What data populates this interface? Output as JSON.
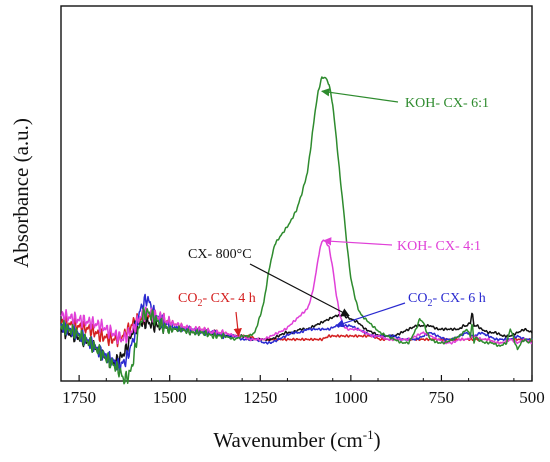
{
  "chart_data": {
    "type": "line",
    "title": "",
    "xlabel": "Wavenumber (cm",
    "xlabel_sup": "-1",
    "xlabel_suffix": ")",
    "ylabel": "Absorbance (a.u.)",
    "xlim": [
      1800,
      500
    ],
    "x_reversed": true,
    "x_ticks": [
      1750,
      1500,
      1250,
      1000,
      750,
      500
    ],
    "x_tick_labels": [
      "1750",
      "1500",
      "1250",
      "1000",
      "750",
      "500"
    ],
    "ylim": [
      0,
      100
    ],
    "y_ticks_shown": false,
    "grid": false,
    "colors": {
      "green": "#2e8b2e",
      "magenta": "#e040d8",
      "black": "#111111",
      "blue": "#2a2ad0",
      "red": "#d42020"
    },
    "annotations": [
      {
        "series": "KOH-CX-6:1",
        "label": "KOH- CX- 6:1",
        "color": "#2e8b2e",
        "pointer_x": 1080,
        "pointer_y": 82
      },
      {
        "series": "KOH-CX-4:1",
        "label": "KOH- CX- 4:1",
        "color": "#e040d8",
        "pointer_x": 1075,
        "pointer_y": 38
      },
      {
        "series": "CX-800",
        "label": "CX- 800°C",
        "color": "#111111",
        "pointer_x": 1005,
        "pointer_y": 16
      },
      {
        "series": "CO2-CX-4h",
        "label_pre": "CO",
        "label_sub": "2",
        "label_post": "- CX- 4 h",
        "color": "#d42020",
        "pointer_x": 1310,
        "pointer_y": 10
      },
      {
        "series": "CO2-CX-6h",
        "label_pre": "CO",
        "label_sub": "2",
        "label_post": "- CX- 6 h",
        "color": "#2a2ad0",
        "pointer_x": 1040,
        "pointer_y": 13
      }
    ],
    "series": [
      {
        "id": "KOH-CX-6:1",
        "name": "KOH- CX- 6:1",
        "color": "#2e8b2e",
        "x": [
          1800,
          1760,
          1720,
          1690,
          1660,
          1640,
          1625,
          1610,
          1600,
          1590,
          1575,
          1560,
          1540,
          1520,
          1500,
          1470,
          1440,
          1410,
          1380,
          1350,
          1320,
          1300,
          1280,
          1265,
          1250,
          1240,
          1225,
          1210,
          1190,
          1170,
          1150,
          1135,
          1120,
          1110,
          1100,
          1090,
          1080,
          1070,
          1060,
          1050,
          1040,
          1030,
          1020,
          1010,
          1000,
          990,
          980,
          970,
          960,
          950,
          940,
          920,
          900,
          880,
          860,
          840,
          820,
          810,
          800,
          790,
          780,
          760,
          740,
          720,
          700,
          680,
          670,
          665,
          660,
          655,
          650,
          630,
          610,
          590,
          570,
          560,
          555,
          550,
          540,
          530,
          520,
          510,
          500
        ],
        "y": [
          13,
          11,
          8,
          5,
          2,
          0,
          -3,
          -1,
          3,
          10,
          16,
          17,
          15,
          13,
          12,
          12,
          11,
          11,
          10,
          10,
          9,
          10,
          10,
          11,
          16,
          20,
          30,
          37,
          40,
          43,
          47,
          52,
          58,
          66,
          75,
          82,
          86,
          86,
          84,
          78,
          68,
          57,
          47,
          36,
          27,
          22,
          18,
          16,
          15,
          14,
          13,
          11,
          10,
          9,
          8,
          8,
          12,
          15,
          14,
          11,
          9,
          8,
          8,
          9,
          10,
          12,
          10,
          14,
          8,
          10,
          9,
          8,
          8,
          7,
          8,
          12,
          11,
          9,
          6,
          8,
          9,
          8,
          9
        ]
      },
      {
        "id": "KOH-CX-4:1",
        "name": "KOH- CX- 4:1",
        "color": "#e040d8",
        "x": [
          1800,
          1760,
          1720,
          1690,
          1660,
          1630,
          1600,
          1580,
          1560,
          1540,
          1520,
          1500,
          1470,
          1440,
          1410,
          1380,
          1350,
          1320,
          1300,
          1280,
          1260,
          1240,
          1220,
          1200,
          1180,
          1160,
          1140,
          1120,
          1110,
          1100,
          1090,
          1080,
          1070,
          1060,
          1050,
          1040,
          1030,
          1020,
          1010,
          1000,
          990,
          980,
          960,
          940,
          920,
          900,
          880,
          860,
          840,
          820,
          800,
          780,
          760,
          740,
          720,
          700,
          680,
          660,
          640,
          620,
          600,
          580,
          560,
          540,
          520,
          500
        ],
        "y": [
          16,
          15,
          14,
          13,
          11,
          9,
          12,
          16,
          17,
          16,
          15,
          14,
          13,
          12,
          12,
          11,
          11,
          10,
          10,
          9,
          9,
          9,
          10,
          11,
          12,
          14,
          16,
          18,
          21,
          26,
          33,
          38,
          38,
          36,
          30,
          22,
          16,
          13,
          12,
          12,
          12,
          12,
          11,
          10,
          10,
          9,
          9,
          9,
          9,
          10,
          11,
          10,
          9,
          8,
          8,
          9,
          9,
          10,
          9,
          9,
          8,
          8,
          9,
          8,
          9,
          8
        ]
      },
      {
        "id": "CX-800",
        "name": "CX- 800°C",
        "color": "#111111",
        "x": [
          1800,
          1760,
          1720,
          1690,
          1660,
          1640,
          1620,
          1600,
          1580,
          1560,
          1540,
          1520,
          1500,
          1470,
          1440,
          1410,
          1380,
          1350,
          1320,
          1300,
          1280,
          1260,
          1240,
          1220,
          1200,
          1180,
          1160,
          1140,
          1120,
          1100,
          1080,
          1060,
          1040,
          1020,
          1000,
          980,
          960,
          940,
          920,
          900,
          880,
          860,
          840,
          820,
          800,
          780,
          760,
          740,
          720,
          700,
          690,
          680,
          670,
          665,
          660,
          650,
          640,
          620,
          600,
          580,
          560,
          540,
          520,
          500
        ],
        "y": [
          12,
          10,
          8,
          5,
          2,
          3,
          6,
          12,
          14,
          14,
          13,
          13,
          12,
          12,
          11,
          11,
          11,
          10,
          10,
          10,
          9,
          9,
          9,
          9,
          10,
          11,
          11,
          12,
          12,
          13,
          14,
          15,
          16,
          16,
          15,
          14,
          12,
          11,
          10,
          10,
          10,
          11,
          12,
          13,
          13,
          13,
          12,
          12,
          12,
          12,
          13,
          13,
          14,
          17,
          13,
          13,
          12,
          11,
          11,
          10,
          10,
          11,
          12,
          11
        ]
      },
      {
        "id": "CO2-CX-6h",
        "name": "CO2- CX- 6 h",
        "color": "#2a2ad0",
        "x": [
          1800,
          1760,
          1720,
          1690,
          1660,
          1640,
          1620,
          1600,
          1590,
          1580,
          1570,
          1560,
          1550,
          1540,
          1520,
          1500,
          1470,
          1440,
          1410,
          1380,
          1350,
          1320,
          1300,
          1280,
          1260,
          1240,
          1220,
          1200,
          1180,
          1160,
          1140,
          1120,
          1100,
          1080,
          1060,
          1040,
          1020,
          1000,
          980,
          960,
          940,
          920,
          900,
          880,
          860,
          840,
          820,
          800,
          780,
          760,
          740,
          720,
          700,
          680,
          660,
          640,
          620,
          600,
          580,
          560,
          540,
          520,
          500
        ],
        "y": [
          13,
          11,
          8,
          5,
          3,
          1,
          3,
          9,
          14,
          18,
          20,
          21,
          18,
          16,
          14,
          13,
          12,
          12,
          11,
          11,
          10,
          10,
          9,
          9,
          9,
          8,
          8,
          9,
          10,
          11,
          11,
          12,
          12,
          12,
          12,
          13,
          13,
          13,
          12,
          11,
          10,
          10,
          10,
          10,
          9,
          9,
          9,
          10,
          11,
          10,
          9,
          9,
          10,
          11,
          10,
          11,
          10,
          9,
          9,
          9,
          10,
          9,
          9
        ]
      },
      {
        "id": "CO2-CX-4h",
        "name": "CO2- CX- 4 h",
        "color": "#d42020",
        "x": [
          1800,
          1760,
          1720,
          1690,
          1660,
          1640,
          1620,
          1600,
          1580,
          1560,
          1540,
          1520,
          1500,
          1470,
          1440,
          1410,
          1380,
          1350,
          1320,
          1300,
          1280,
          1260,
          1240,
          1220,
          1200,
          1180,
          1160,
          1140,
          1120,
          1100,
          1080,
          1060,
          1040,
          1020,
          1000,
          980,
          960,
          940,
          920,
          900,
          880,
          860,
          840,
          820,
          800,
          780,
          760,
          740,
          720,
          700,
          680,
          660,
          640,
          620,
          600,
          580,
          560,
          540,
          520,
          500
        ],
        "y": [
          14,
          13,
          12,
          10,
          9,
          9,
          11,
          14,
          15,
          16,
          16,
          15,
          14,
          13,
          12,
          12,
          11,
          11,
          10,
          10,
          10,
          9,
          9,
          9,
          9,
          9,
          9,
          9,
          9,
          9,
          9,
          10,
          10,
          10,
          10,
          10,
          10,
          10,
          9,
          9,
          9,
          9,
          9,
          9,
          9,
          9,
          9,
          9,
          9,
          9,
          9,
          9,
          9,
          9,
          8,
          8,
          9,
          9,
          9,
          9
        ]
      }
    ]
  }
}
